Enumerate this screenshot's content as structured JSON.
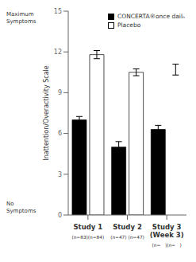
{
  "chart_data": {
    "type": "bar",
    "categories": [
      "Study 1",
      "Study 2",
      "Study 3\n(Week 3)"
    ],
    "category_sublabels": [
      "(n=83)(n=84)",
      "(n=47) (n=47)",
      "(n=   )(n=   )"
    ],
    "ylabel": "Inattention/Overactivity Scale",
    "annotations": [
      "Maximum\nSymptoms",
      "No\nSymptoms"
    ],
    "series": [
      {
        "name": "CONCERTA®once dailₙ",
        "color": "#000000",
        "values": [
          7.0,
          5.0,
          6.3
        ],
        "errors": [
          0.25,
          0.4,
          0.3
        ]
      },
      {
        "name": "Placebo",
        "color": "#ffffff",
        "values": [
          11.8,
          10.5,
          null
        ],
        "errors": [
          0.3,
          0.25,
          0.4
        ],
        "error_centers": [
          null,
          null,
          10.7
        ]
      }
    ],
    "ylim": [
      0,
      15
    ],
    "yticks": [
      0,
      3,
      6,
      9,
      12,
      15
    ],
    "grid": false,
    "legend": "upper right"
  }
}
